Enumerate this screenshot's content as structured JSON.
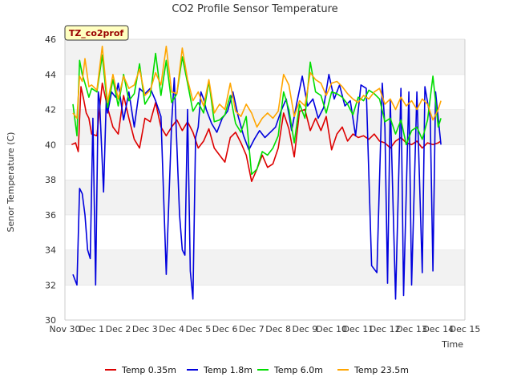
{
  "chart_data": {
    "type": "line",
    "title": "CO2 Profile Sensor Temperature",
    "xlabel": "Time",
    "ylabel": "Senor Temperature (C)",
    "badge": "TZ_co2prof",
    "xlim": [
      0,
      15
    ],
    "ylim": [
      30,
      46
    ],
    "yticks": [
      30,
      32,
      34,
      36,
      38,
      40,
      42,
      44,
      46
    ],
    "x_tick_labels": [
      "Nov 30",
      "Dec 1",
      "Dec 2",
      "Dec 3",
      "Dec 4",
      "Dec 5",
      "Dec 6",
      "Dec 7",
      "Dec 8",
      "Dec 9",
      "Dec 10",
      "Dec 11",
      "Dec 12",
      "Dec 13",
      "Dec 14",
      "Dec 15"
    ],
    "x_unit": "days since Nov 30",
    "grid": "horizontal bands",
    "legend": "bottom",
    "series": [
      {
        "name": "Temp 0.35m",
        "color": "#dd0000",
        "x": [
          0.25,
          0.4,
          0.5,
          0.6,
          0.7,
          0.8,
          0.9,
          1.0,
          1.2,
          1.4,
          1.6,
          1.8,
          2.0,
          2.2,
          2.4,
          2.6,
          2.8,
          3.0,
          3.2,
          3.4,
          3.6,
          3.8,
          4.0,
          4.2,
          4.4,
          4.6,
          4.8,
          5.0,
          5.2,
          5.4,
          5.6,
          5.8,
          6.0,
          6.2,
          6.4,
          6.6,
          6.8,
          7.0,
          7.2,
          7.4,
          7.6,
          7.8,
          8.0,
          8.2,
          8.4,
          8.6,
          8.8,
          9.0,
          9.2,
          9.4,
          9.6,
          9.8,
          10.0,
          10.2,
          10.4,
          10.6,
          10.8,
          11.0,
          11.2,
          11.4,
          11.6,
          11.8,
          12.0,
          12.2,
          12.4,
          12.6,
          12.8,
          13.0,
          13.2,
          13.4,
          13.6,
          13.8,
          14.0,
          14.1
        ],
        "values": [
          40.0,
          40.1,
          39.6,
          43.3,
          42.6,
          41.8,
          41.5,
          40.6,
          40.5,
          43.5,
          42.1,
          41.0,
          40.6,
          42.8,
          41.5,
          40.3,
          39.8,
          41.5,
          41.3,
          42.4,
          41.0,
          40.5,
          41.0,
          41.4,
          40.8,
          41.3,
          40.7,
          39.8,
          40.2,
          40.9,
          39.8,
          39.4,
          39.0,
          40.4,
          40.7,
          40.1,
          39.4,
          37.9,
          38.6,
          39.4,
          38.7,
          38.9,
          39.8,
          41.8,
          40.9,
          39.3,
          41.9,
          42.0,
          40.8,
          41.5,
          40.8,
          41.6,
          39.7,
          40.6,
          41.0,
          40.2,
          40.6,
          40.4,
          40.5,
          40.3,
          40.6,
          40.2,
          40.1,
          39.8,
          40.2,
          40.4,
          40.1,
          40.0,
          40.2,
          39.8,
          40.1,
          40.0,
          40.1,
          40.2
        ]
      },
      {
        "name": "Temp 1.8m",
        "color": "#0000dd",
        "x": [
          0.3,
          0.45,
          0.55,
          0.65,
          0.75,
          0.85,
          0.95,
          1.05,
          1.15,
          1.25,
          1.3,
          1.45,
          1.55,
          1.6,
          1.75,
          1.9,
          2.0,
          2.2,
          2.4,
          2.6,
          2.8,
          3.0,
          3.2,
          3.4,
          3.6,
          3.8,
          4.0,
          4.1,
          4.3,
          4.4,
          4.5,
          4.6,
          4.7,
          4.8,
          4.9,
          5.0,
          5.1,
          5.2,
          5.3,
          5.5,
          5.7,
          5.9,
          6.1,
          6.3,
          6.5,
          6.7,
          6.9,
          7.1,
          7.3,
          7.5,
          7.7,
          7.9,
          8.1,
          8.3,
          8.5,
          8.7,
          8.9,
          9.1,
          9.3,
          9.5,
          9.7,
          9.9,
          10.1,
          10.3,
          10.5,
          10.7,
          10.9,
          11.1,
          11.3,
          11.5,
          11.7,
          11.9,
          12.0,
          12.1,
          12.2,
          12.4,
          12.6,
          12.7,
          12.9,
          13.0,
          13.2,
          13.4,
          13.5,
          13.7,
          13.8,
          13.9,
          14.1
        ],
        "values": [
          32.6,
          32.0,
          37.5,
          37.2,
          36.0,
          34.0,
          33.5,
          41.5,
          32.0,
          43.0,
          42.5,
          37.3,
          42.6,
          41.8,
          43.0,
          42.7,
          43.5,
          41.4,
          43.0,
          41.0,
          43.2,
          42.9,
          43.2,
          42.5,
          41.6,
          32.6,
          41.2,
          43.8,
          36.0,
          34.0,
          33.7,
          42.0,
          32.8,
          31.2,
          40.4,
          41.0,
          43.0,
          42.6,
          42.0,
          41.2,
          40.7,
          41.5,
          41.9,
          43.0,
          41.6,
          40.5,
          39.7,
          40.3,
          40.8,
          40.4,
          40.7,
          41.0,
          41.9,
          42.6,
          40.8,
          42.4,
          43.9,
          42.2,
          42.6,
          41.5,
          42.1,
          44.0,
          42.6,
          43.4,
          42.2,
          42.5,
          40.5,
          43.4,
          43.2,
          33.1,
          32.7,
          43.5,
          41.0,
          32.1,
          42.5,
          31.2,
          43.2,
          31.4,
          43.0,
          32.0,
          43.0,
          32.7,
          43.3,
          41.5,
          32.8,
          43.0,
          40.0
        ]
      },
      {
        "name": "Temp 6.0m",
        "color": "#00dd00",
        "x": [
          0.3,
          0.45,
          0.55,
          0.65,
          0.75,
          0.9,
          1.0,
          1.2,
          1.4,
          1.6,
          1.8,
          2.0,
          2.2,
          2.4,
          2.6,
          2.8,
          3.0,
          3.2,
          3.4,
          3.6,
          3.8,
          4.0,
          4.2,
          4.4,
          4.6,
          4.8,
          5.0,
          5.2,
          5.4,
          5.6,
          5.8,
          6.0,
          6.2,
          6.4,
          6.6,
          6.8,
          7.0,
          7.2,
          7.4,
          7.6,
          7.8,
          8.0,
          8.2,
          8.4,
          8.6,
          8.8,
          9.0,
          9.2,
          9.4,
          9.6,
          9.8,
          10.0,
          10.2,
          10.4,
          10.6,
          10.8,
          11.0,
          11.2,
          11.4,
          11.6,
          11.8,
          12.0,
          12.2,
          12.4,
          12.6,
          12.8,
          13.0,
          13.2,
          13.4,
          13.6,
          13.8,
          14.0,
          14.1
        ],
        "values": [
          42.3,
          40.5,
          44.8,
          44.0,
          43.5,
          42.7,
          43.2,
          43.0,
          45.1,
          42.1,
          43.7,
          42.2,
          44.0,
          42.5,
          42.9,
          44.6,
          42.3,
          42.8,
          45.2,
          42.8,
          44.8,
          42.4,
          42.9,
          45.0,
          43.5,
          41.9,
          42.4,
          41.8,
          43.6,
          41.3,
          41.4,
          41.7,
          42.8,
          41.2,
          40.7,
          41.6,
          38.3,
          38.6,
          39.6,
          39.4,
          39.8,
          40.5,
          43.0,
          42.0,
          40.1,
          42.3,
          41.5,
          44.7,
          43.0,
          42.8,
          41.8,
          43.0,
          42.9,
          42.7,
          42.3,
          41.7,
          42.7,
          42.5,
          43.1,
          42.9,
          42.6,
          41.3,
          41.5,
          40.6,
          41.4,
          40.0,
          40.8,
          41.0,
          40.3,
          41.4,
          43.9,
          41.0,
          41.5
        ]
      },
      {
        "name": "Temp 23.5m",
        "color": "#ffa500",
        "x": [
          0.3,
          0.45,
          0.55,
          0.65,
          0.75,
          0.9,
          1.0,
          1.2,
          1.4,
          1.6,
          1.8,
          2.0,
          2.2,
          2.4,
          2.6,
          2.8,
          3.0,
          3.2,
          3.4,
          3.6,
          3.8,
          4.0,
          4.2,
          4.4,
          4.6,
          4.8,
          5.0,
          5.2,
          5.4,
          5.6,
          5.8,
          6.0,
          6.2,
          6.4,
          6.6,
          6.8,
          7.0,
          7.2,
          7.4,
          7.6,
          7.8,
          8.0,
          8.2,
          8.4,
          8.6,
          8.8,
          9.0,
          9.2,
          9.4,
          9.6,
          9.8,
          10.0,
          10.2,
          10.4,
          10.6,
          10.8,
          11.0,
          11.2,
          11.4,
          11.6,
          11.8,
          12.0,
          12.2,
          12.4,
          12.6,
          12.8,
          13.0,
          13.2,
          13.4,
          13.6,
          13.8,
          14.0,
          14.1
        ],
        "values": [
          41.8,
          41.5,
          43.9,
          43.6,
          44.9,
          43.3,
          43.4,
          43.1,
          45.6,
          42.4,
          44.0,
          42.6,
          43.9,
          43.2,
          43.4,
          44.3,
          42.8,
          43.1,
          44.1,
          43.4,
          45.6,
          43.0,
          42.9,
          45.5,
          43.7,
          42.5,
          43.0,
          42.2,
          43.7,
          41.8,
          42.3,
          42.0,
          43.5,
          41.9,
          41.6,
          42.3,
          41.8,
          41.0,
          41.5,
          41.8,
          41.5,
          41.9,
          44.0,
          43.4,
          41.6,
          42.5,
          42.2,
          44.1,
          43.7,
          43.5,
          42.8,
          43.5,
          43.6,
          43.3,
          42.9,
          42.6,
          42.4,
          42.8,
          42.6,
          43.0,
          43.2,
          42.3,
          42.6,
          42.0,
          42.7,
          42.2,
          42.5,
          42.0,
          42.6,
          42.3,
          41.4,
          42.0,
          42.5
        ]
      }
    ]
  }
}
